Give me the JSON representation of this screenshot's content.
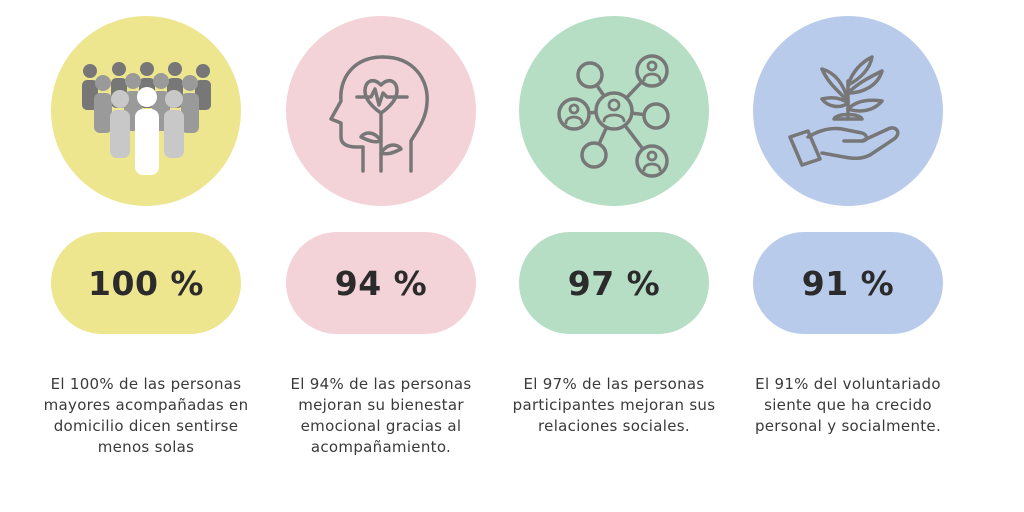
{
  "colors": {
    "yellow": "#ede68f",
    "pink": "#f3d3d8",
    "green": "#b6dec4",
    "blue": "#b9cbeb",
    "icon_stroke": "#777777"
  },
  "stats": [
    {
      "icon": "people-group-icon",
      "value": "100 %",
      "description": "El 100% de las personas mayores acompañadas en domicilio dicen sentirse menos solas"
    },
    {
      "icon": "head-heart-plant-icon",
      "value": "94 %",
      "description": "El 94% de las personas mejoran su bienestar emocional gracias al acompañamiento."
    },
    {
      "icon": "social-network-icon",
      "value": "97 %",
      "description": "El 97% de las personas participantes mejoran sus relaciones sociales."
    },
    {
      "icon": "hand-plant-icon",
      "value": "91 %",
      "description": "El 91% del voluntariado siente que ha crecido personal y socialmente."
    }
  ]
}
